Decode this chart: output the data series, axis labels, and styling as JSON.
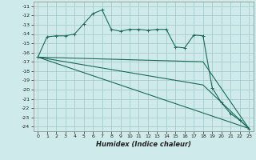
{
  "title": "",
  "xlabel": "Humidex (Indice chaleur)",
  "background_color": "#ceeaea",
  "grid_color": "#aacccc",
  "line_color": "#1a6b5a",
  "xlim": [
    -0.5,
    23.5
  ],
  "ylim": [
    -24.5,
    -10.5
  ],
  "yticks": [
    -11,
    -12,
    -13,
    -14,
    -15,
    -16,
    -17,
    -18,
    -19,
    -20,
    -21,
    -22,
    -23,
    -24
  ],
  "xticks": [
    0,
    1,
    2,
    3,
    4,
    5,
    6,
    7,
    8,
    9,
    10,
    11,
    12,
    13,
    14,
    15,
    16,
    17,
    18,
    19,
    20,
    21,
    22,
    23
  ],
  "line1_x": [
    0,
    1,
    2,
    3,
    4,
    5,
    6,
    7,
    8,
    9,
    10,
    11,
    12,
    13,
    14,
    15,
    16,
    17,
    18,
    19,
    20,
    21,
    22,
    23
  ],
  "line1_y": [
    -16.5,
    -14.3,
    -14.2,
    -14.2,
    -14.0,
    -12.9,
    -11.8,
    -11.4,
    -13.5,
    -13.7,
    -13.5,
    -13.5,
    -13.6,
    -13.5,
    -13.5,
    -15.4,
    -15.5,
    -14.1,
    -14.2,
    -19.8,
    -21.4,
    -22.6,
    -23.3,
    -24.2
  ],
  "line2_x": [
    0,
    23
  ],
  "line2_y": [
    -16.5,
    -24.2
  ],
  "line3_x": [
    0,
    18,
    23
  ],
  "line3_y": [
    -16.5,
    -19.5,
    -24.2
  ],
  "line4_x": [
    0,
    18,
    23
  ],
  "line4_y": [
    -16.5,
    -17.0,
    -24.2
  ]
}
